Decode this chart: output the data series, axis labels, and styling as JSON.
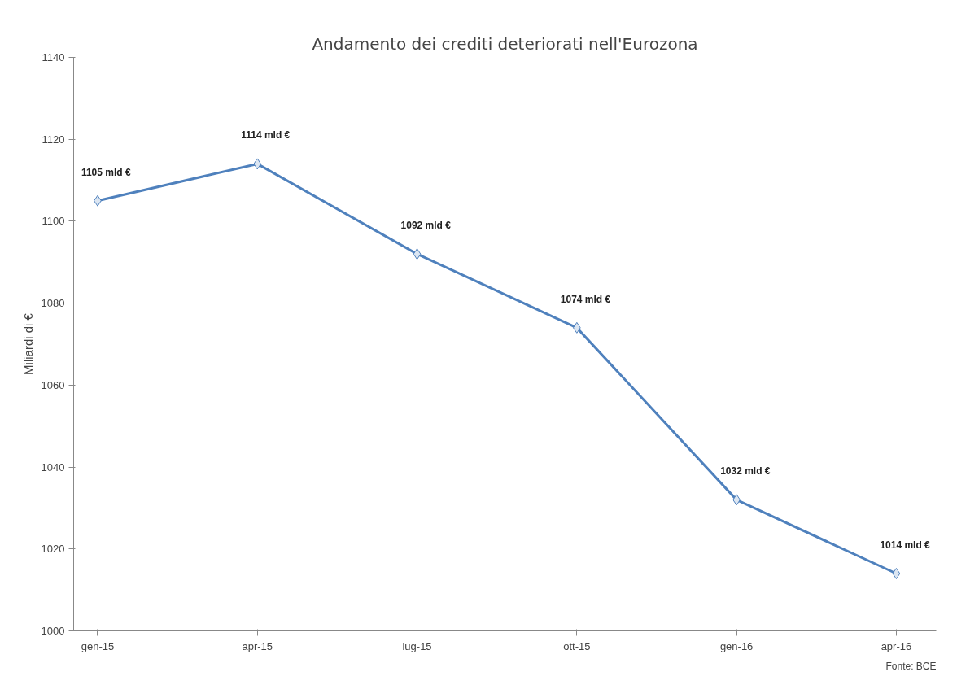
{
  "chart_data": {
    "type": "line",
    "title": "Andamento dei crediti deteriorati nell'Eurozona",
    "ylabel": "Miliardi di €",
    "categories": [
      "gen-15",
      "apr-15",
      "lug-15",
      "ott-15",
      "gen-16",
      "apr-16"
    ],
    "series": [
      {
        "color": "#4f81bd",
        "values": [
          1105,
          1114,
          1092,
          1074,
          1032,
          1014
        ],
        "value_labels": [
          "1105 mld €",
          "1114 mld €",
          "1092 mld €",
          "1074 mld €",
          "1032 mld €",
          "1014 mld  €"
        ]
      }
    ],
    "ylim": [
      1000,
      1140
    ],
    "yticks": [
      1000,
      1020,
      1040,
      1060,
      1080,
      1100,
      1120,
      1140
    ],
    "grid": false,
    "marker": "diamond",
    "line_style": "solid",
    "annotations": [
      "Fonte: BCE"
    ]
  }
}
